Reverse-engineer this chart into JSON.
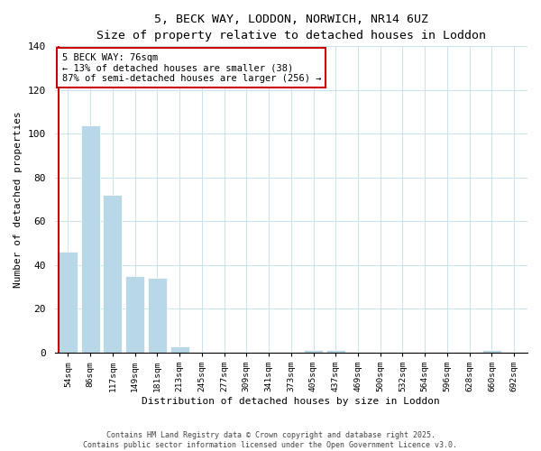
{
  "title": "5, BECK WAY, LODDON, NORWICH, NR14 6UZ",
  "subtitle": "Size of property relative to detached houses in Loddon",
  "xlabel": "Distribution of detached houses by size in Loddon",
  "ylabel": "Number of detached properties",
  "bar_labels": [
    "54sqm",
    "86sqm",
    "117sqm",
    "149sqm",
    "181sqm",
    "213sqm",
    "245sqm",
    "277sqm",
    "309sqm",
    "341sqm",
    "373sqm",
    "405sqm",
    "437sqm",
    "469sqm",
    "500sqm",
    "532sqm",
    "564sqm",
    "596sqm",
    "628sqm",
    "660sqm",
    "692sqm"
  ],
  "bar_values": [
    46,
    104,
    72,
    35,
    34,
    3,
    0,
    0,
    0,
    0,
    0,
    1,
    1,
    0,
    0,
    0,
    0,
    0,
    0,
    1,
    0
  ],
  "bar_color": "#b8d8e8",
  "vline_color": "#cc0000",
  "vline_pos": -0.42,
  "annotation_title": "5 BECK WAY: 76sqm",
  "annotation_line1": "← 13% of detached houses are smaller (38)",
  "annotation_line2": "87% of semi-detached houses are larger (256) →",
  "annotation_box_edgecolor": "#cc0000",
  "ylim": [
    0,
    140
  ],
  "yticks": [
    0,
    20,
    40,
    60,
    80,
    100,
    120,
    140
  ],
  "footnote1": "Contains HM Land Registry data © Crown copyright and database right 2025.",
  "footnote2": "Contains public sector information licensed under the Open Government Licence v3.0.",
  "background_color": "#ffffff",
  "grid_color": "#cce4f0"
}
